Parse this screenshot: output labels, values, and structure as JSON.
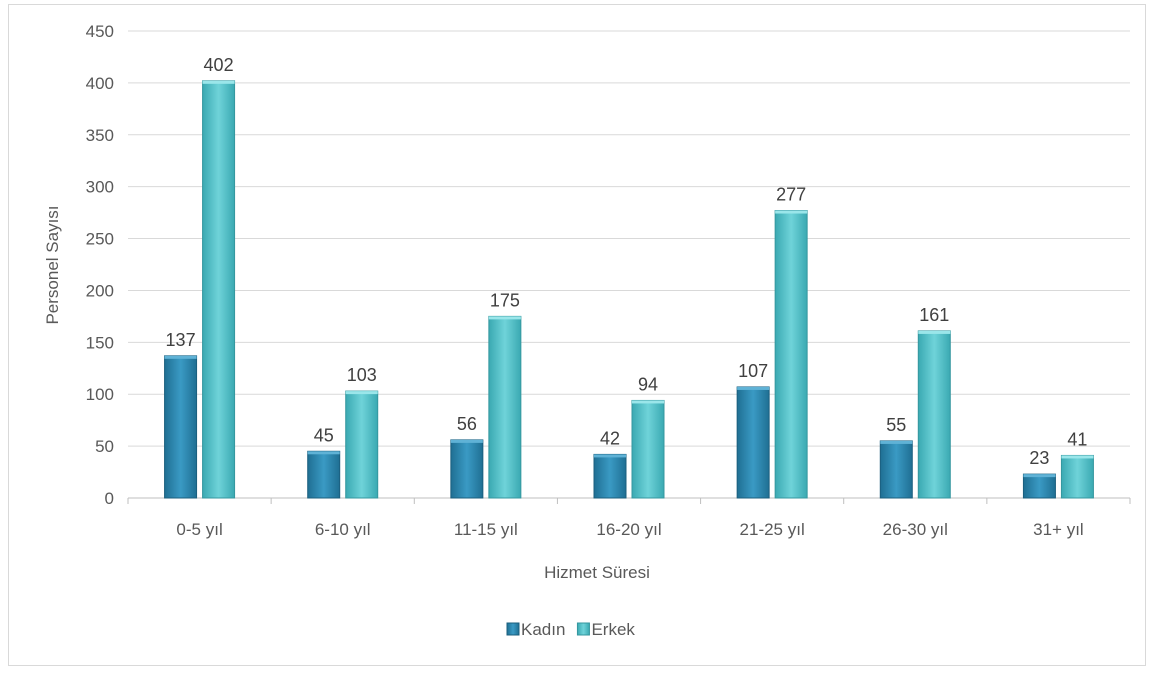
{
  "chart_data": {
    "type": "bar",
    "title": "",
    "xlabel": "Hizmet Süresi",
    "ylabel": "Personel Sayısı",
    "categories": [
      "0-5 yıl",
      "6-10 yıl",
      "11-15 yıl",
      "16-20 yıl",
      "21-25 yıl",
      "26-30 yıl",
      "31+ yıl"
    ],
    "series": [
      {
        "name": "Kadın",
        "values": [
          137,
          45,
          56,
          42,
          107,
          55,
          23
        ],
        "color": "#2e86ab"
      },
      {
        "name": "Erkek",
        "values": [
          402,
          103,
          175,
          94,
          277,
          161,
          41
        ],
        "color": "#4bbfc6"
      }
    ],
    "ylim": [
      0,
      450
    ],
    "yticks": [
      0,
      50,
      100,
      150,
      200,
      250,
      300,
      350,
      400,
      450
    ],
    "grid": true,
    "legend_position": "bottom",
    "data_labels": true
  }
}
